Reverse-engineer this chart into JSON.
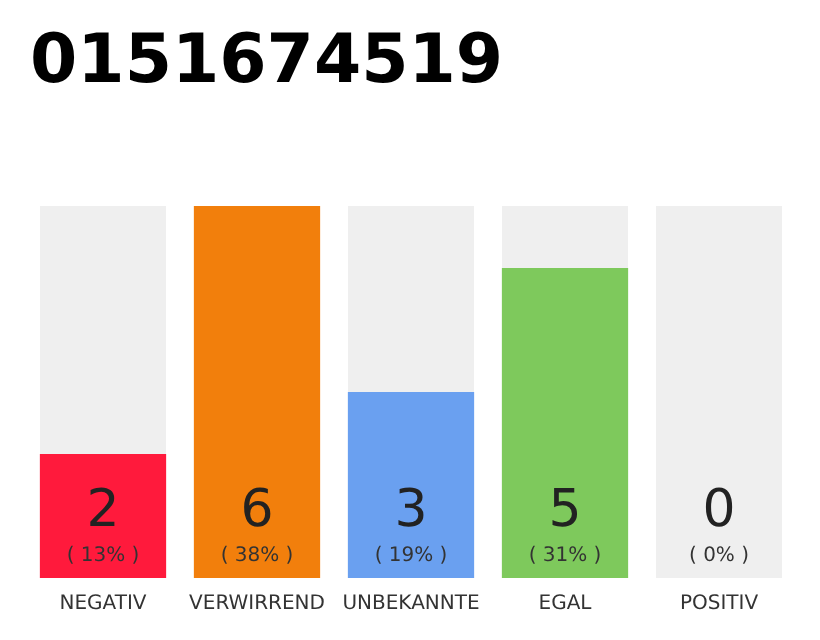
{
  "chart_data": {
    "type": "bar",
    "title": "0151674519",
    "categories": [
      "NEGATIV",
      "VERWIRREND",
      "UNBEKANNTE",
      "EGAL",
      "POSITIV"
    ],
    "values": [
      2,
      6,
      3,
      5,
      0
    ],
    "colors": [
      "#ff1a3c",
      "#f27f0c",
      "#6aa0f0",
      "#7ec95c",
      "#cccccc"
    ],
    "value_labels": [
      "2\n( 13% )",
      "6\n( 38% )",
      "3\n( 19% )",
      "5\n( 31% )",
      "0\n( 0% )"
    ],
    "ylim": [
      0,
      6
    ]
  }
}
